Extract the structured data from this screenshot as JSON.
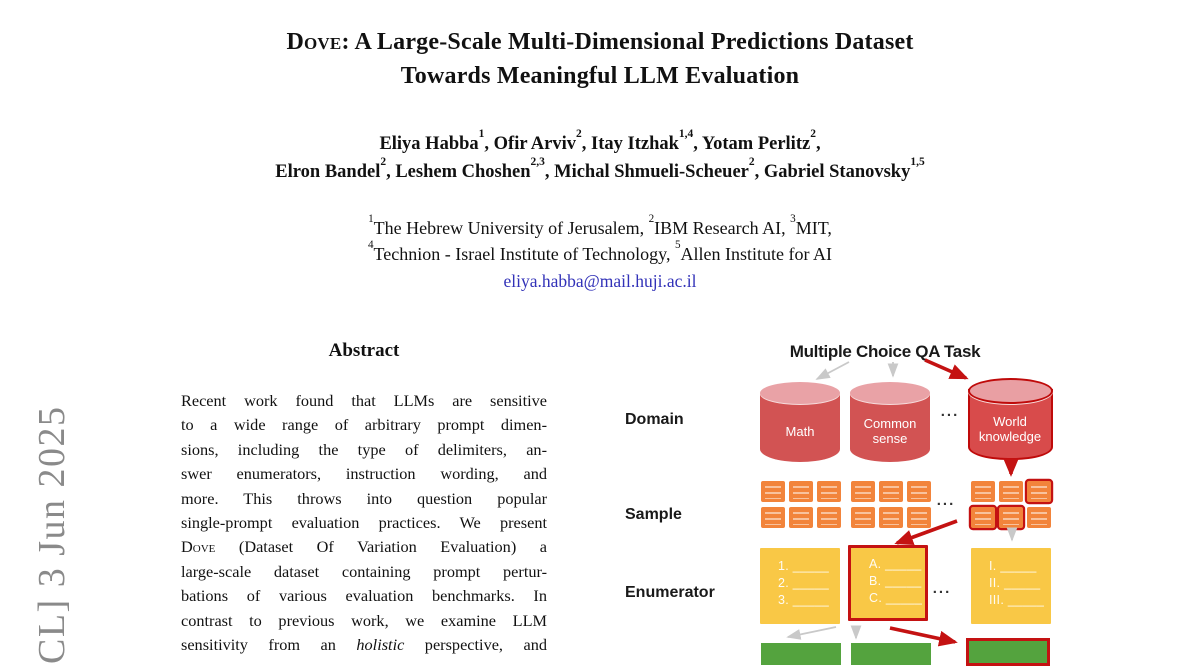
{
  "header": {
    "title_line1": [
      {
        "sc": "Dove"
      },
      {
        "t": ": A Large-Scale Multi-Dimensional Predictions Dataset"
      }
    ],
    "title_line2": "Towards Meaningful LLM Evaluation",
    "authors_line1": [
      {
        "t": "Eliya Habba"
      },
      {
        "sup": "1"
      },
      {
        "t": ", Ofir Arviv"
      },
      {
        "sup": "2"
      },
      {
        "t": ", Itay Itzhak"
      },
      {
        "sup": "1,4"
      },
      {
        "t": ", Yotam Perlitz"
      },
      {
        "sup": "2"
      },
      {
        "t": ","
      }
    ],
    "authors_line2": [
      {
        "t": "Elron Bandel"
      },
      {
        "sup": "2"
      },
      {
        "t": ", Leshem Choshen"
      },
      {
        "sup": "2,3"
      },
      {
        "t": ", Michal Shmueli-Scheuer"
      },
      {
        "sup": "2"
      },
      {
        "t": ", Gabriel Stanovsky"
      },
      {
        "sup": "1,5"
      }
    ],
    "affiliations_line1": [
      {
        "sup": "1"
      },
      {
        "t": "The Hebrew University of Jerusalem, "
      },
      {
        "sup": "2"
      },
      {
        "t": "IBM Research AI, "
      },
      {
        "sup": "3"
      },
      {
        "t": "MIT,"
      }
    ],
    "affiliations_line2": [
      {
        "sup": "4"
      },
      {
        "t": "Technion - Israel Institute of Technology, "
      },
      {
        "sup": "5"
      },
      {
        "t": "Allen Institute for AI"
      }
    ],
    "email": "eliya.habba@mail.huji.ac.il"
  },
  "arxiv_stamp": "CL]  3 Jun 2025",
  "abstract": {
    "heading": "Abstract",
    "lines": [
      [
        {
          "t": "Recent work found that LLMs are sensitive"
        }
      ],
      [
        {
          "t": "to a wide range of arbitrary prompt dimen-"
        }
      ],
      [
        {
          "t": "sions, including the type of delimiters, an-"
        }
      ],
      [
        {
          "t": "swer enumerators, instruction wording, and"
        }
      ],
      [
        {
          "t": "more. This throws into question popular"
        }
      ],
      [
        {
          "t": "single-prompt evaluation practices. We present"
        }
      ],
      [
        {
          "sc": "Dove"
        },
        {
          "t": " (Dataset Of Variation Evaluation) a"
        }
      ],
      [
        {
          "t": "large-scale dataset containing prompt pertur-"
        }
      ],
      [
        {
          "t": "bations of various evaluation benchmarks. In"
        }
      ],
      [
        {
          "t": "contrast to previous work, we examine LLM"
        }
      ],
      [
        {
          "t": "sensitivity from an "
        },
        {
          "i": "holistic"
        },
        {
          "t": " perspective, and"
        }
      ]
    ]
  },
  "figure": {
    "title": "Multiple Choice QA Task",
    "row_labels": {
      "domain": "Domain",
      "sample": "Sample",
      "enumerator": "Enumerator"
    },
    "domains": {
      "d1": "Math",
      "d2": "Common sense",
      "d3": "World knowledge"
    },
    "ellipsis": "...",
    "enumerators": {
      "numeric": [
        "1. _____",
        "2. _____",
        "3. _____"
      ],
      "letters": [
        "A. _____",
        "B. _____",
        "C. _____"
      ],
      "roman": [
        "I. _____",
        "II. _____",
        "III. _____"
      ]
    },
    "colors": {
      "cylinder_red": "#d25353",
      "cylinder_top_pink": "#e9a2a6",
      "highlight_red": "#c41212",
      "sample_orange": "#f2843b",
      "enumerator_yellow": "#f9c846",
      "format_green": "#54a33e",
      "arrow_gray": "#c9c9c9",
      "email_blue": "#3232b8",
      "stamp_gray": "#8a8a8a"
    }
  }
}
